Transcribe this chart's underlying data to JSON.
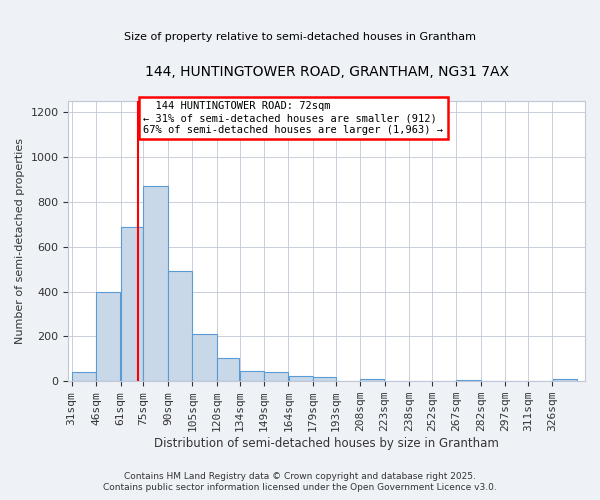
{
  "title1": "144, HUNTINGTOWER ROAD, GRANTHAM, NG31 7AX",
  "title2": "Size of property relative to semi-detached houses in Grantham",
  "xlabel": "Distribution of semi-detached houses by size in Grantham",
  "ylabel": "Number of semi-detached properties",
  "bar_color": "#c8d8e8",
  "bar_edge_color": "#5b9bd5",
  "bin_labels": [
    "31sqm",
    "46sqm",
    "61sqm",
    "75sqm",
    "90sqm",
    "105sqm",
    "120sqm",
    "134sqm",
    "149sqm",
    "164sqm",
    "179sqm",
    "193sqm",
    "208sqm",
    "223sqm",
    "238sqm",
    "252sqm",
    "267sqm",
    "282sqm",
    "297sqm",
    "311sqm",
    "326sqm"
  ],
  "bin_edges": [
    31,
    46,
    61,
    75,
    90,
    105,
    120,
    134,
    149,
    164,
    179,
    193,
    208,
    223,
    238,
    252,
    267,
    282,
    297,
    311,
    326,
    341
  ],
  "values": [
    40,
    400,
    690,
    870,
    490,
    210,
    105,
    45,
    40,
    25,
    20,
    0,
    10,
    0,
    0,
    0,
    5,
    0,
    0,
    0,
    10
  ],
  "property_size": 72,
  "property_label": "144 HUNTINGTOWER ROAD: 72sqm",
  "smaller_pct": "31%",
  "smaller_n": "912",
  "larger_pct": "67%",
  "larger_n": "1,963",
  "ylim": [
    0,
    1250
  ],
  "yticks": [
    0,
    200,
    400,
    600,
    800,
    1000,
    1200
  ],
  "footer1": "Contains HM Land Registry data © Crown copyright and database right 2025.",
  "footer2": "Contains public sector information licensed under the Open Government Licence v3.0.",
  "bg_color": "#eef2f7",
  "plot_bg_color": "#ffffff",
  "grid_color": "#c0c8d8"
}
